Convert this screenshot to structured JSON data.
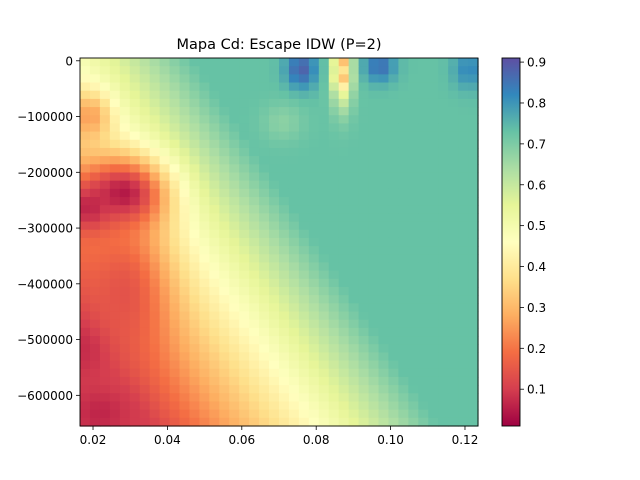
{
  "chart_data": {
    "type": "heatmap",
    "title": "Mapa Cd: Escape IDW (P=2)",
    "xlabel": "",
    "ylabel": "",
    "xlim": [
      0.0165,
      0.1235
    ],
    "ylim": [
      -655000,
      5000
    ],
    "x_ticks": [
      0.02,
      0.04,
      0.06,
      0.08,
      0.1,
      0.12
    ],
    "x_tick_labels": [
      "0.02",
      "0.04",
      "0.06",
      "0.08",
      "0.10",
      "0.12"
    ],
    "y_ticks": [
      0,
      -100000,
      -200000,
      -300000,
      -400000,
      -500000,
      -600000
    ],
    "y_tick_labels": [
      "0",
      "−100000",
      "−200000",
      "−300000",
      "−400000",
      "−500000",
      "−600000"
    ],
    "colormap": "Spectral",
    "colorbar": {
      "range": [
        0.01,
        0.91
      ],
      "ticks": [
        0.1,
        0.2,
        0.3,
        0.4,
        0.5,
        0.6,
        0.7,
        0.8,
        0.9
      ],
      "tick_labels": [
        "0.1",
        "0.2",
        "0.3",
        "0.4",
        "0.5",
        "0.6",
        "0.7",
        "0.8",
        "0.9"
      ]
    },
    "grid": {
      "nx": 40,
      "ny": 45,
      "background": {
        "base": 0.05,
        "slope": 0.87,
        "offset": 0.5,
        "clip": [
          0.1,
          0.73
        ]
      },
      "features": [
        {
          "x": 0.028,
          "y": -240000,
          "value": 0.03,
          "sx": 0.008,
          "sy": 45000
        },
        {
          "x": 0.019,
          "y": -265000,
          "value": 0.05,
          "sx": 0.004,
          "sy": 30000
        },
        {
          "x": 0.019,
          "y": -510000,
          "value": 0.05,
          "sx": 0.004,
          "sy": 35000
        },
        {
          "x": 0.022,
          "y": -630000,
          "value": 0.06,
          "sx": 0.005,
          "sy": 30000
        },
        {
          "x": 0.028,
          "y": -420000,
          "value": 0.14,
          "sx": 0.008,
          "sy": 90000
        },
        {
          "x": 0.019,
          "y": -100000,
          "value": 0.26,
          "sx": 0.004,
          "sy": 30000
        },
        {
          "x": 0.076,
          "y": -15000,
          "value": 0.88,
          "sx": 0.003,
          "sy": 25000
        },
        {
          "x": 0.097,
          "y": -10000,
          "value": 0.86,
          "sx": 0.003,
          "sy": 20000
        },
        {
          "x": 0.121,
          "y": -15000,
          "value": 0.82,
          "sx": 0.003,
          "sy": 25000
        },
        {
          "x": 0.071,
          "y": -110000,
          "value": 0.68,
          "sx": 0.004,
          "sy": 25000
        },
        {
          "x": 0.087,
          "y": -20000,
          "value": 0.45,
          "sx": 0.002,
          "sy": 45000
        },
        {
          "x": 0.087,
          "y": -5000,
          "value": 0.3,
          "sx": 0.0012,
          "sy": 9000
        },
        {
          "x": 0.087,
          "y": -35000,
          "value": 0.31,
          "sx": 0.0012,
          "sy": 9000
        }
      ]
    }
  }
}
